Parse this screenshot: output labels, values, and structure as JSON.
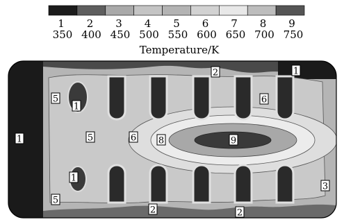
{
  "chart_data": {
    "type": "heatmap",
    "title": "",
    "colorbar": {
      "title": "Temperature/K",
      "levels": [
        "1",
        "2",
        "3",
        "4",
        "5",
        "6",
        "7",
        "8",
        "9"
      ],
      "ticks": [
        "350",
        "400",
        "450",
        "500",
        "550",
        "600",
        "650",
        "700",
        "750"
      ],
      "range": [
        350,
        750
      ],
      "colors": [
        "#1c1c1c",
        "#5e5e5e",
        "#a9a9a9",
        "#c4c4c4",
        "#b3b3b3",
        "#d2d2d2",
        "#e8e8e8",
        "#bdbdbd",
        "#555555"
      ]
    },
    "contour_labels": [
      {
        "level": "1",
        "region": "left outer edge"
      },
      {
        "level": "1",
        "region": "top-right corner"
      },
      {
        "level": "1",
        "region": "upper-left fin gap"
      },
      {
        "level": "1",
        "region": "lower-left fin gap"
      },
      {
        "level": "2",
        "region": "top edge"
      },
      {
        "level": "2",
        "region": "bottom edge"
      },
      {
        "level": "2",
        "region": "bottom edge right"
      },
      {
        "level": "3",
        "region": "lower-right corner"
      },
      {
        "level": "5",
        "region": "upper-left"
      },
      {
        "level": "5",
        "region": "left center"
      },
      {
        "level": "5",
        "region": "lower-left"
      },
      {
        "level": "6",
        "region": "center-left"
      },
      {
        "level": "6",
        "region": "right fins"
      },
      {
        "level": "8",
        "region": "hot zone halo"
      },
      {
        "level": "9",
        "region": "hot core"
      }
    ]
  }
}
